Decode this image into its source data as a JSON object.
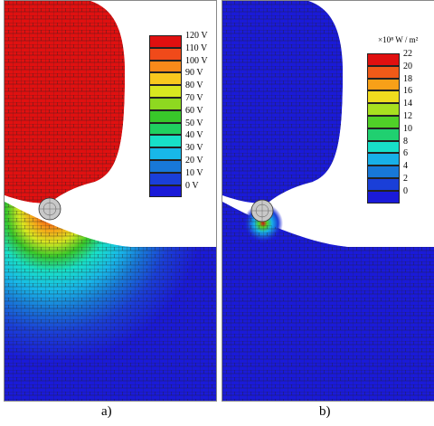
{
  "panel_a": {
    "caption": "a)",
    "legend_labels": [
      "120 V",
      "110 V",
      "100 V",
      "90 V",
      "80 V",
      "70 V",
      "60 V",
      "50 V",
      "40 V",
      "30 V",
      "20 V",
      "10 V",
      "0 V"
    ],
    "legend_colors": [
      "#e01010",
      "#f04a1a",
      "#f88a1a",
      "#f8c81e",
      "#d8e820",
      "#8ed820",
      "#38c82a",
      "#20d060",
      "#18e0c8",
      "#18b8e8",
      "#1878d8",
      "#1a3fd8",
      "#1a1ad8"
    ]
  },
  "panel_b": {
    "caption": "b)",
    "unit_label": "×10⁸ W / m²",
    "legend_labels": [
      "22",
      "20",
      "18",
      "16",
      "14",
      "12",
      "10",
      "8",
      "6",
      "4",
      "2",
      "0"
    ],
    "legend_colors": [
      "#e01010",
      "#f05a18",
      "#f8a018",
      "#f0dc1e",
      "#a8e020",
      "#50d028",
      "#20d070",
      "#18e0c8",
      "#18b0e8",
      "#1878d8",
      "#1a3fd8",
      "#1a1ad8"
    ]
  },
  "colors": {
    "mesh_line": "#222222",
    "field_blue": "#1a1ad8",
    "field_red": "#e01010",
    "electrode_grey": "#c8c8c8"
  }
}
